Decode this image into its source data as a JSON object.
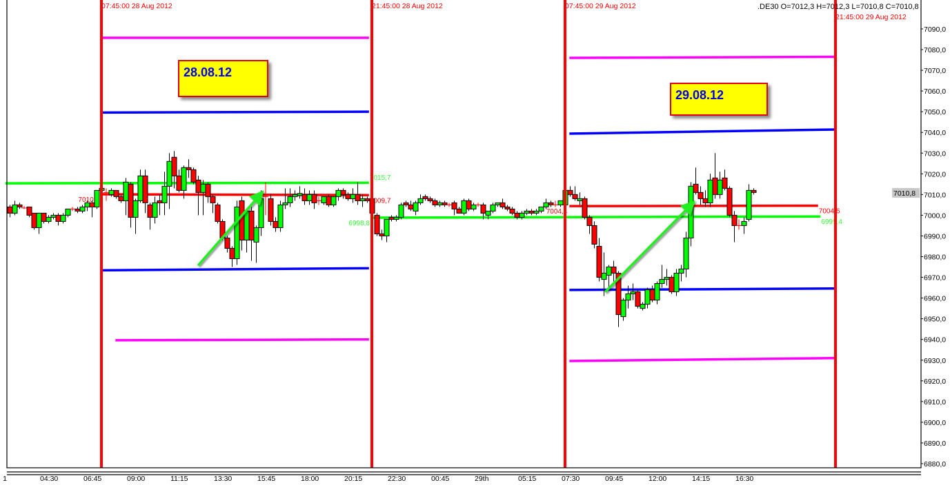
{
  "header": {
    "symbol_ohlc": ".DE30 O=7012,3 H=7012,3 L=7010,8 C=7010,8"
  },
  "annotations": {
    "box_1": "28.08.12",
    "box_2": "29.08.12"
  },
  "colors": {
    "bull": "#00ff00",
    "bear": "#ff0000",
    "session_line": "#ff0000",
    "magenta": "#ff00ff",
    "blue": "#0000ff",
    "green": "#00ff00",
    "red": "#ff0000"
  },
  "chart_data": {
    "type": "candlestick",
    "ylim": [
      6876,
      7098
    ],
    "yticks": [
      "7090,0",
      "7080,0",
      "7070,0",
      "7060,0",
      "7050,0",
      "7040,0",
      "7030,0",
      "7020,0",
      "7010,0",
      "7000,0",
      "6990,0",
      "6980,0",
      "6970,0",
      "6960,0",
      "6950,0",
      "6940,0",
      "6930,0",
      "6920,0",
      "6910,0",
      "6900,0",
      "6890,0",
      "6880,0"
    ],
    "current_price": "7010,8",
    "xticks": [
      {
        "label": "1",
        "bar": -1.7
      },
      {
        "label": "04:30",
        "bar": 6
      },
      {
        "label": "06:45",
        "bar": 15
      },
      {
        "label": "09:00",
        "bar": 24
      },
      {
        "label": "11:15",
        "bar": 33
      },
      {
        "label": "13:30",
        "bar": 42
      },
      {
        "label": "15:45",
        "bar": 51
      },
      {
        "label": "18:00",
        "bar": 60
      },
      {
        "label": "20:15",
        "bar": 69
      },
      {
        "label": "22:30",
        "bar": 78
      },
      {
        "label": "00:45",
        "bar": 87
      },
      {
        "label": "29th",
        "bar": 96
      },
      {
        "label": "05:15",
        "bar": 105
      },
      {
        "label": "07:30",
        "bar": 114
      },
      {
        "label": "09:45",
        "bar": 123
      },
      {
        "label": "12:00",
        "bar": 132
      },
      {
        "label": "14:15",
        "bar": 141
      },
      {
        "label": "16:30",
        "bar": 150
      }
    ],
    "session_lines": [
      {
        "bar": 19,
        "label": "07:45:00 28 Aug 2012"
      },
      {
        "bar": 75,
        "label": "21:45:00 28 Aug 2012"
      },
      {
        "bar": 115,
        "label": "07:45:00 29 Aug 2012"
      },
      {
        "bar": 171,
        "label": "21:45:00 29 Aug 2012"
      }
    ],
    "levels": [
      {
        "color": "magenta",
        "from_bar": 19,
        "to_bar": 74.4,
        "v1": 7085.7,
        "v2": 7085.7
      },
      {
        "color": "blue",
        "from_bar": 19,
        "to_bar": 74.4,
        "v1": 7049.6,
        "v2": 7050.0
      },
      {
        "color": "green",
        "from_bar": -0.9,
        "to_bar": 74.4,
        "v1": 7015.4,
        "v2": 7015.7,
        "label_right": "7015,7"
      },
      {
        "color": "red",
        "from_bar": 19,
        "to_bar": 74.4,
        "v1": 7010.1,
        "v2": 7009.7,
        "label_left": "7010,1",
        "label_right": "7009,7"
      },
      {
        "color": "blue",
        "from_bar": 19,
        "to_bar": 74.4,
        "v1": 6973.4,
        "v2": 6974.4
      },
      {
        "color": "magenta",
        "from_bar": 21.9,
        "to_bar": 74.4,
        "v1": 6939.6,
        "v2": 6940.0
      },
      {
        "color": "green",
        "from_bar": 75,
        "to_bar": 167.9,
        "v1": 6998.8,
        "v2": 6999.4,
        "label_left": "6998,8",
        "label_right": "6999,4"
      },
      {
        "color": "magenta",
        "from_bar": 115.9,
        "to_bar": 170.9,
        "v1": 7076.0,
        "v2": 7076.5
      },
      {
        "color": "blue",
        "from_bar": 115.9,
        "to_bar": 170.9,
        "v1": 7039.4,
        "v2": 7041.4
      },
      {
        "color": "red",
        "from_bar": 115.9,
        "to_bar": 167.4,
        "v1": 7004.4,
        "v2": 7004.6,
        "label_left": "7004,4",
        "label_right": "7004,6"
      },
      {
        "color": "blue",
        "from_bar": 115.9,
        "to_bar": 171.2,
        "v1": 6963.9,
        "v2": 6964.6
      },
      {
        "color": "magenta",
        "from_bar": 115.9,
        "to_bar": 171.2,
        "v1": 6929.6,
        "v2": 6931.0
      }
    ],
    "arrows": [
      {
        "from": [
          39,
          6975.7
        ],
        "to": [
          52,
          7010.3
        ]
      },
      {
        "from": [
          123.3,
          6962.9
        ],
        "to": [
          141.3,
          7005.5
        ]
      }
    ],
    "candles": [
      [
        7004,
        7005,
        6999,
        7001
      ],
      [
        7001,
        7007,
        7000,
        7005
      ],
      [
        7005,
        7006,
        7003,
        7004
      ],
      [
        7003.5,
        7004.5,
        7003,
        7003.5
      ],
      [
        7004,
        7004,
        6999,
        7000
      ],
      [
        7001,
        7001,
        6993,
        6994
      ],
      [
        6994,
        7001,
        6991,
        7001
      ],
      [
        7001,
        7001,
        6996,
        6997
      ],
      [
        6997,
        7000,
        6996,
        6999
      ],
      [
        6999,
        7001,
        6998,
        7000
      ],
      [
        7000,
        7001,
        6995,
        6997
      ],
      [
        6997,
        7001,
        6996,
        7000
      ],
      [
        7000,
        7003,
        6999,
        7003
      ],
      [
        7003,
        7004,
        7002,
        7003
      ],
      [
        7003,
        7004,
        7001,
        7002
      ],
      [
        7002,
        7005,
        7001,
        7004
      ],
      [
        7004,
        7007,
        7002,
        7006
      ],
      [
        7006,
        7007,
        6999,
        7004
      ],
      [
        7004,
        7012,
        7003,
        7012
      ],
      [
        7012,
        7014,
        7011,
        7013
      ],
      [
        7011,
        7013,
        7007,
        7011
      ],
      [
        7010,
        7013,
        7009,
        7012
      ],
      [
        7012,
        7012,
        7008,
        7009
      ],
      [
        7009,
        7010,
        7006,
        7007
      ],
      [
        7007,
        7018,
        7000,
        7016
      ],
      [
        7015,
        7016,
        6994,
        6999
      ],
      [
        6999,
        7008,
        6991,
        7007
      ],
      [
        7007,
        7022,
        7006,
        7019
      ],
      [
        7019,
        7022,
        7001,
        7006
      ],
      [
        7005,
        7006,
        6993,
        6999
      ],
      [
        6999,
        7009,
        6996,
        7006
      ],
      [
        7007,
        7010,
        7000,
        7006
      ],
      [
        7006,
        7021,
        7000,
        7014
      ],
      [
        7014,
        7030,
        7003,
        7026
      ],
      [
        7028,
        7031,
        7013,
        7019
      ],
      [
        7019,
        7022,
        7011,
        7012
      ],
      [
        7012,
        7024,
        7008,
        7023
      ],
      [
        7023,
        7027,
        7018,
        7022
      ],
      [
        7022,
        7023,
        7015,
        7016
      ],
      [
        7017,
        7019,
        7000,
        7011
      ],
      [
        7011,
        7017,
        7000,
        7015
      ],
      [
        7015,
        7016,
        7006,
        7009
      ],
      [
        7009,
        7010,
        7001,
        7006
      ],
      [
        7005,
        7006,
        6996,
        6997
      ],
      [
        6997,
        6998,
        6988,
        6989
      ],
      [
        6989,
        6990,
        6982,
        6984
      ],
      [
        6984,
        6985,
        6975,
        6979
      ],
      [
        6979,
        7007,
        6976,
        7004
      ],
      [
        7007,
        7009,
        6983,
        6988
      ],
      [
        6988,
        7003,
        6982,
        7002
      ],
      [
        7002,
        7004,
        6978,
        6988
      ],
      [
        6987,
        6995,
        6977,
        6994
      ],
      [
        6994,
        7012,
        6990,
        7008
      ],
      [
        7009,
        7016,
        7000,
        7009
      ],
      [
        7008,
        7010,
        6995,
        6997
      ],
      [
        6997,
        6999,
        6992,
        6994
      ],
      [
        6994,
        7007,
        6992,
        7005
      ],
      [
        7005,
        7013,
        7003,
        7006
      ],
      [
        7006,
        7013,
        7004,
        7009
      ],
      [
        7009,
        7012,
        7007,
        7010
      ],
      [
        7009.5,
        7014,
        7008,
        7010.5
      ],
      [
        7010,
        7013,
        7005,
        7007
      ],
      [
        7007,
        7012,
        7005,
        7010
      ],
      [
        7010,
        7012,
        7003,
        7006
      ],
      [
        7007,
        7009,
        7005,
        7007
      ],
      [
        7006,
        7009,
        7005,
        7009
      ],
      [
        7009,
        7010,
        7004,
        7005
      ],
      [
        7005,
        7009,
        7004,
        7009
      ],
      [
        7009,
        7013,
        7007,
        7012
      ],
      [
        7012,
        7013,
        7008,
        7010
      ],
      [
        7010,
        7011,
        7007,
        7008
      ],
      [
        7008,
        7013,
        7006,
        7010
      ],
      [
        7010,
        7016,
        7005,
        7007
      ],
      [
        7007,
        7010,
        7004,
        7008
      ],
      [
        7008,
        7009,
        7006,
        7007
      ],
      [
        7008,
        7009,
        6999,
        7001
      ],
      [
        7000,
        7001,
        6990,
        6991
      ],
      [
        6991,
        6993,
        6988,
        6990
      ],
      [
        6990,
        6998,
        6987,
        6998
      ],
      [
        6999,
        7000,
        6997,
        6998
      ],
      [
        6998,
        7000,
        6997,
        6999
      ],
      [
        6999,
        7006,
        6998,
        7005
      ],
      [
        7006,
        7007,
        7004,
        7005
      ],
      [
        7005,
        7007,
        7002,
        7003
      ],
      [
        7002,
        7007,
        7000,
        7006
      ],
      [
        7006,
        7010,
        7005,
        7008
      ],
      [
        7009,
        7010,
        7007,
        7008
      ],
      [
        7008,
        7009,
        7006,
        7007
      ],
      [
        7007,
        7008,
        7004,
        7005
      ],
      [
        7005,
        7007,
        7004,
        7006
      ],
      [
        7006,
        7007,
        7004,
        7005
      ],
      [
        7005.5,
        7006,
        7004,
        7005
      ],
      [
        7006,
        7007,
        7000,
        7003
      ],
      [
        7003,
        7004,
        7001,
        7001
      ],
      [
        7001,
        7008,
        7000,
        7007
      ],
      [
        7007,
        7008,
        7002,
        7003
      ],
      [
        7003,
        7006,
        7002,
        7005
      ],
      [
        7005.5,
        7006,
        7004,
        7005
      ],
      [
        7005,
        7006,
        6998,
        7001
      ],
      [
        7000,
        7002,
        6998,
        7002
      ],
      [
        7002,
        7006,
        7001,
        7005
      ],
      [
        7005,
        7006,
        7004,
        7006
      ],
      [
        7006,
        7008,
        7003,
        7004
      ],
      [
        7004,
        7005,
        7002,
        7003
      ],
      [
        7003,
        7004,
        7000,
        7001
      ],
      [
        7001,
        7002,
        6998,
        6999
      ],
      [
        6999,
        7002,
        6998,
        7001
      ],
      [
        7001,
        7003,
        7000,
        7002
      ],
      [
        7002,
        7003,
        7000,
        7001
      ],
      [
        7001,
        7003,
        7000,
        7002
      ],
      [
        7002,
        7004,
        7001,
        7004
      ],
      [
        7004,
        7008,
        7003,
        7006
      ],
      [
        7006,
        7007,
        7004,
        7005
      ],
      [
        7005.5,
        7007,
        7004,
        7005
      ],
      [
        7005,
        7007,
        7004,
        7007
      ],
      [
        7005,
        7013,
        7004,
        7012
      ],
      [
        7012,
        7014,
        7009,
        7010
      ],
      [
        7010,
        7014,
        7007,
        7008
      ],
      [
        7007,
        7011,
        7005,
        7008
      ],
      [
        7008,
        7009,
        6998,
        6999
      ],
      [
        6999,
        7000,
        6991,
        6995
      ],
      [
        6995,
        6997,
        6984,
        6986
      ],
      [
        6985,
        6989,
        6968,
        6970
      ],
      [
        6969,
        6982,
        6961,
        6972
      ],
      [
        6971,
        6976,
        6964,
        6975
      ],
      [
        6975,
        6978,
        6968,
        6972
      ],
      [
        6972,
        6973,
        6946,
        6952
      ],
      [
        6951,
        6960,
        6949,
        6959
      ],
      [
        6959,
        6966,
        6955,
        6962
      ],
      [
        6962,
        6967,
        6959,
        6963
      ],
      [
        6963,
        6964,
        6955,
        6956
      ],
      [
        6955,
        6958,
        6954,
        6957
      ],
      [
        6957,
        6965,
        6955,
        6964
      ],
      [
        6964,
        6966,
        6958,
        6959
      ],
      [
        6959,
        6968,
        6957,
        6967
      ],
      [
        6967,
        6976,
        6965,
        6969
      ],
      [
        6969,
        6974,
        6966,
        6970
      ],
      [
        6970,
        6971,
        6962,
        6963
      ],
      [
        6963,
        6974,
        6961,
        6972
      ],
      [
        6972,
        6976,
        6968,
        6974
      ],
      [
        6974,
        6992,
        6970,
        6989
      ],
      [
        6989,
        7016,
        6985,
        7014
      ],
      [
        7015,
        7023,
        7010,
        7011
      ],
      [
        7011,
        7014,
        7005,
        7008
      ],
      [
        7008,
        7012,
        7004,
        7006
      ],
      [
        7006,
        7020,
        7004,
        7017
      ],
      [
        7018,
        7030,
        7008,
        7010
      ],
      [
        7010,
        7021,
        7008,
        7017
      ],
      [
        7018,
        7022,
        7012,
        7013
      ],
      [
        7013,
        7014,
        6999,
        7000
      ],
      [
        7000,
        7002,
        6987,
        6995
      ],
      [
        6995.5,
        6998,
        6993,
        6995
      ],
      [
        6995,
        6999,
        6991,
        6997
      ],
      [
        6998,
        7015,
        6997,
        7012
      ],
      [
        7012,
        7013,
        7010,
        7011
      ]
    ]
  }
}
